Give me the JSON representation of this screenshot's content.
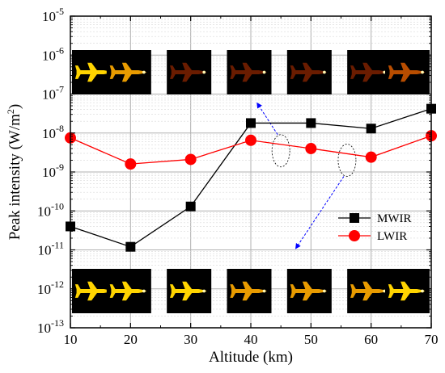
{
  "chart_data": {
    "type": "line",
    "xlabel": "Altitude (km)",
    "ylabel_base": "Peak intensity (W/m",
    "ylabel_sup": "2",
    "ylabel_tail": ")",
    "xlim": [
      10,
      70
    ],
    "ylim_log10": [
      -13,
      -5
    ],
    "y_scale": "log",
    "grid": true,
    "legend_placement": "right",
    "x_ticks": [
      "10",
      "20",
      "30",
      "40",
      "50",
      "60",
      "70"
    ],
    "x": [
      10,
      20,
      30,
      40,
      50,
      60,
      70
    ],
    "series": [
      {
        "name": "MWIR",
        "color": "#000000",
        "marker": "square",
        "values": [
          4e-11,
          1.2e-11,
          1.3e-10,
          1.8e-08,
          1.8e-08,
          1.3e-08,
          4.2e-08
        ]
      },
      {
        "name": "LWIR",
        "color": "#ff0000",
        "marker": "circle",
        "values": [
          7.5e-09,
          1.6e-09,
          2.1e-09,
          6.5e-09,
          4e-09,
          2.4e-09,
          8.5e-09
        ]
      }
    ],
    "insets": {
      "top_row": [
        "MWIR image 10 km",
        "MWIR image 20 km",
        "MWIR image 30 km",
        "MWIR image 40 km",
        "MWIR image 50 km",
        "MWIR image 60 km",
        "MWIR image 70 km"
      ],
      "bottom_row": [
        "LWIR image 10 km",
        "LWIR image 20 km",
        "LWIR image 30 km",
        "LWIR image 40 km",
        "LWIR image 50 km",
        "LWIR image 60 km",
        "LWIR image 70 km"
      ]
    },
    "annotation_colors": {
      "top_arrow": "#0000ff",
      "bottom_arrow": "#0000ff"
    }
  }
}
